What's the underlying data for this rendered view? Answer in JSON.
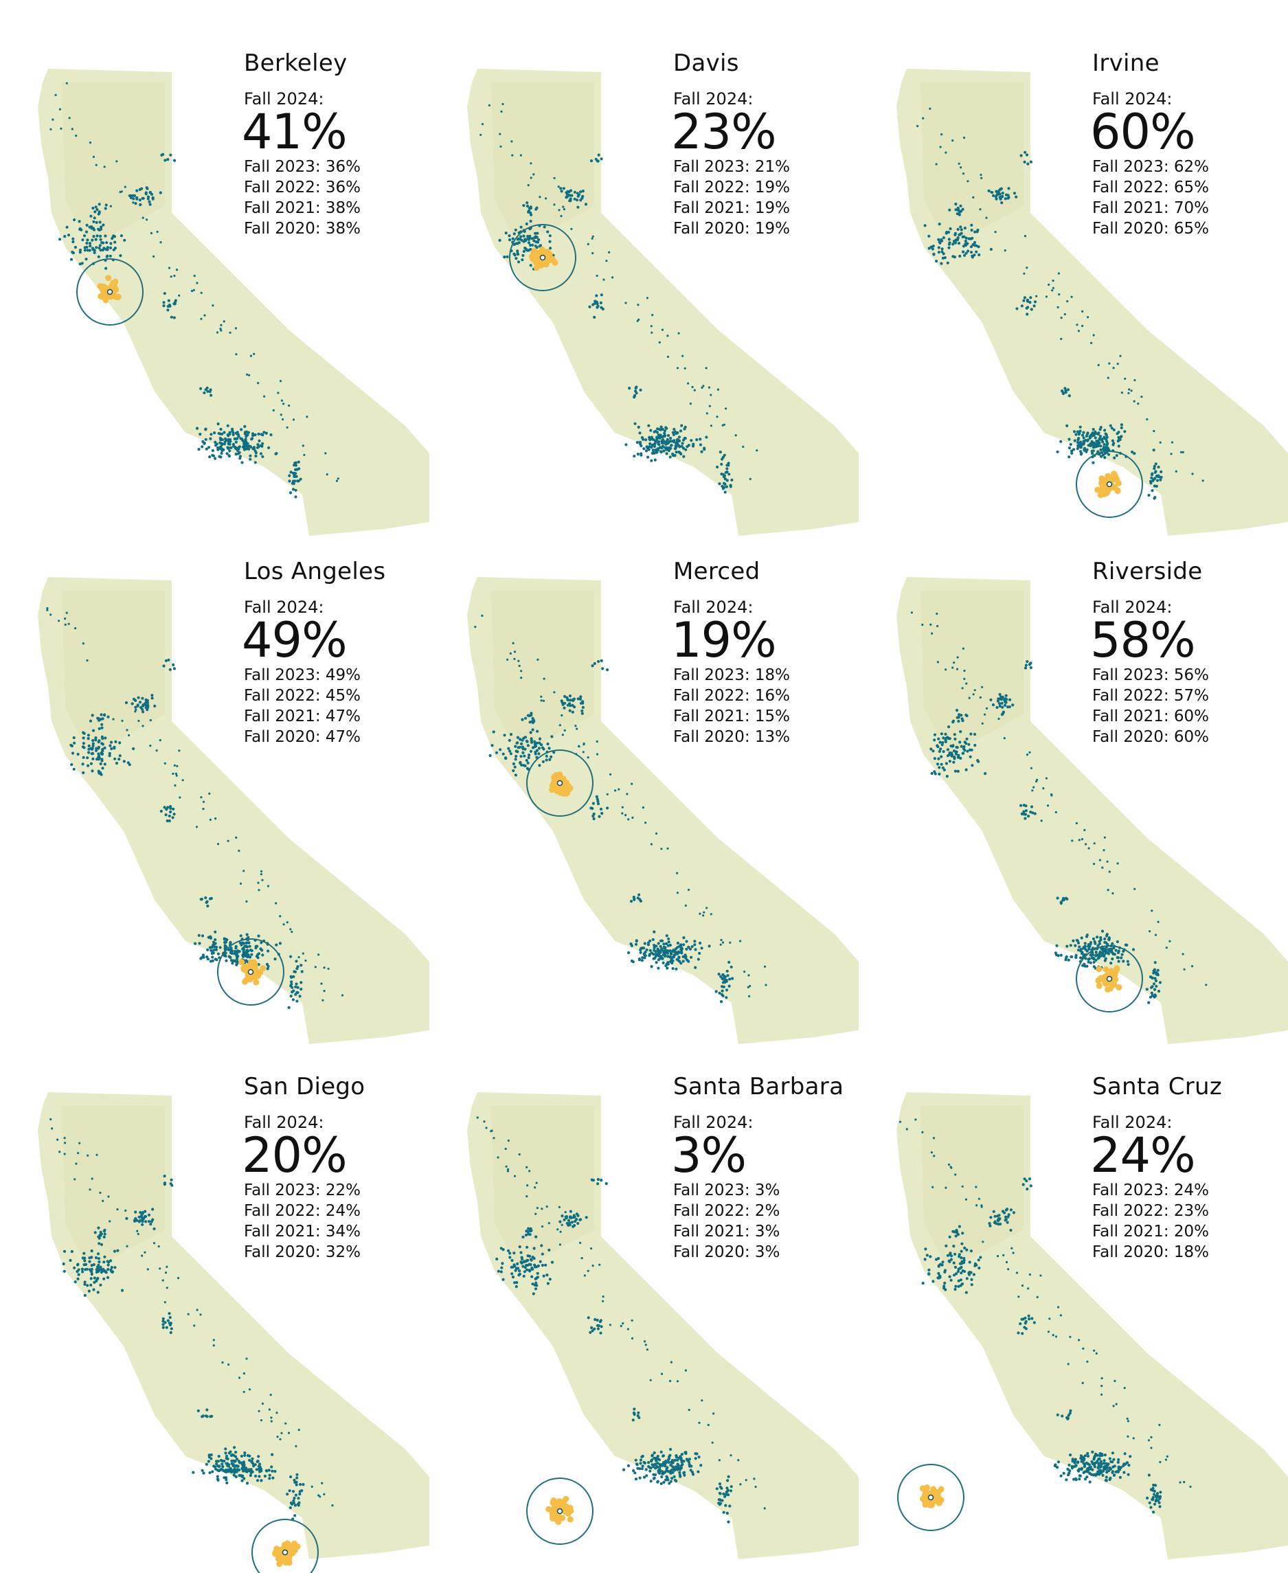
{
  "colors": {
    "land": "#e7eac7",
    "dots": "#0e6f84",
    "highlight": "#f5bd45",
    "circle": "#1f6f7c"
  },
  "panels": [
    {
      "campus": "Berkeley",
      "current_label": "Fall 2024:",
      "current_value": "41%",
      "history": [
        "Fall 2023: 36%",
        "Fall 2022: 36%",
        "Fall 2021: 38%",
        "Fall 2020: 38%"
      ]
    },
    {
      "campus": "Davis",
      "current_label": "Fall 2024:",
      "current_value": "23%",
      "history": [
        "Fall 2023: 21%",
        "Fall 2022: 19%",
        "Fall 2021: 19%",
        "Fall 2020: 19%"
      ]
    },
    {
      "campus": "Irvine",
      "current_label": "Fall 2024:",
      "current_value": "60%",
      "history": [
        "Fall 2023: 62%",
        "Fall 2022: 65%",
        "Fall 2021: 70%",
        "Fall 2020: 65%"
      ]
    },
    {
      "campus": "Los Angeles",
      "current_label": "Fall 2024:",
      "current_value": "49%",
      "history": [
        "Fall 2023: 49%",
        "Fall 2022: 45%",
        "Fall 2021: 47%",
        "Fall 2020: 47%"
      ]
    },
    {
      "campus": "Merced",
      "current_label": "Fall 2024:",
      "current_value": "19%",
      "history": [
        "Fall 2023: 18%",
        "Fall 2022: 16%",
        "Fall 2021: 15%",
        "Fall 2020: 13%"
      ]
    },
    {
      "campus": "Riverside",
      "current_label": "Fall 2024:",
      "current_value": "58%",
      "history": [
        "Fall 2023: 56%",
        "Fall 2022: 57%",
        "Fall 2021: 60%",
        "Fall 2020: 60%"
      ]
    },
    {
      "campus": "San Diego",
      "current_label": "Fall 2024:",
      "current_value": "20%",
      "history": [
        "Fall 2023: 22%",
        "Fall 2022: 24%",
        "Fall 2021: 34%",
        "Fall 2020: 32%"
      ]
    },
    {
      "campus": "Santa Barbara",
      "current_label": "Fall 2024:",
      "current_value": "3%",
      "history": [
        "Fall 2023: 3%",
        "Fall 2022: 2%",
        "Fall 2021: 3%",
        "Fall 2020: 3%"
      ]
    },
    {
      "campus": "Santa Cruz",
      "current_label": "Fall 2024:",
      "current_value": "24%",
      "history": [
        "Fall 2023: 24%",
        "Fall 2022: 23%",
        "Fall 2021: 20%",
        "Fall 2020: 18%"
      ]
    }
  ]
}
